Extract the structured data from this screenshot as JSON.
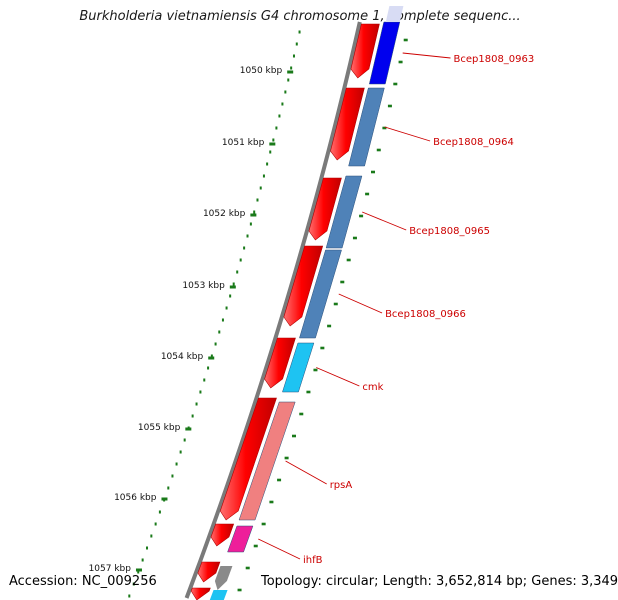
{
  "title": "Burkholderia vietnamiensis G4 chromosome 1, complete sequenc...",
  "footer": {
    "accession": "Accession: NC_009256",
    "topology": "Topology: circular; Length: 3,652,814 bp; Genes: 3,349"
  },
  "scale_ticks": [
    {
      "label": "1050 kbp"
    },
    {
      "label": "1051 kbp"
    },
    {
      "label": "1052 kbp"
    },
    {
      "label": "1053 kbp"
    },
    {
      "label": "1054 kbp"
    },
    {
      "label": "1055 kbp"
    },
    {
      "label": "1056 kbp"
    },
    {
      "label": "1057 kbp"
    }
  ],
  "genes": [
    {
      "label": "Bcep1808_0963",
      "color": "#0000ee"
    },
    {
      "label": "Bcep1808_0964",
      "color": "#4f82b8"
    },
    {
      "label": "Bcep1808_0965",
      "color": "#4f82b8"
    },
    {
      "label": "Bcep1808_0966",
      "color": "#4f82b8"
    },
    {
      "label": "cmk",
      "color": "#1ec3f2"
    },
    {
      "label": "rpsA",
      "color": "#f08080"
    },
    {
      "label": "ihfB",
      "color": "#ee1f9a"
    }
  ],
  "colors": {
    "cds_forward": "#ff0000",
    "backbone": "#7a7a7a",
    "scale_dots": "#1a7a1a",
    "label_text": "#cc0000"
  }
}
